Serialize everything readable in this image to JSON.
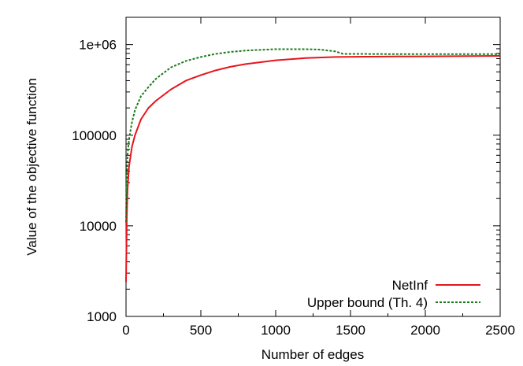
{
  "chart_data": {
    "type": "line",
    "title": "",
    "xlabel": "Number of edges",
    "ylabel": "Value of the objective function",
    "xlim": [
      0,
      2500
    ],
    "ylim": [
      1000,
      2000000
    ],
    "yscale": "log",
    "grid": false,
    "legend_position": "bottom-right",
    "x_ticks": [
      {
        "value": 0,
        "label": "0"
      },
      {
        "value": 500,
        "label": "500"
      },
      {
        "value": 1000,
        "label": "1000"
      },
      {
        "value": 1500,
        "label": "1500"
      },
      {
        "value": 2000,
        "label": "2000"
      },
      {
        "value": 2500,
        "label": "2500"
      }
    ],
    "y_ticks": [
      {
        "value": 1000,
        "label": "1000"
      },
      {
        "value": 10000,
        "label": "10000"
      },
      {
        "value": 100000,
        "label": "100000"
      },
      {
        "value": 1000000,
        "label": "1e+06"
      }
    ],
    "series": [
      {
        "name": "NetInf",
        "color": "#e8141c",
        "dash": "solid",
        "x": [
          0,
          5,
          10,
          20,
          40,
          60,
          100,
          150,
          200,
          300,
          400,
          500,
          600,
          700,
          800,
          1000,
          1200,
          1400,
          1600,
          1800,
          2000,
          2200,
          2500
        ],
        "y": [
          2400,
          12000,
          25000,
          45000,
          75000,
          100000,
          150000,
          200000,
          240000,
          320000,
          400000,
          460000,
          520000,
          570000,
          610000,
          670000,
          710000,
          730000,
          735000,
          740000,
          742000,
          745000,
          750000
        ]
      },
      {
        "name": "Upper bound (Th. 4)",
        "color": "#1a7a1a",
        "dash": "dashed",
        "x": [
          0,
          5,
          10,
          20,
          40,
          60,
          100,
          150,
          200,
          300,
          400,
          500,
          600,
          700,
          800,
          1000,
          1200,
          1300,
          1400,
          1450,
          1500,
          1800,
          2000,
          2200,
          2500
        ],
        "y": [
          11000,
          30000,
          60000,
          90000,
          140000,
          190000,
          270000,
          340000,
          420000,
          560000,
          660000,
          730000,
          790000,
          830000,
          860000,
          890000,
          890000,
          880000,
          840000,
          790000,
          790000,
          785000,
          785000,
          785000,
          785000
        ]
      }
    ]
  }
}
